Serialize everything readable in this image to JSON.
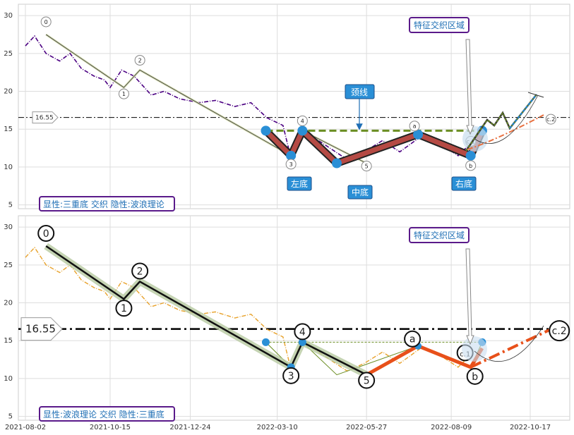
{
  "chart_data": [
    {
      "type": "line",
      "panel": "top",
      "ylim": [
        4.5,
        31.5
      ],
      "yticks": [
        5,
        10,
        15,
        20,
        25,
        30
      ],
      "grid": true,
      "level_line": {
        "value": 16.55,
        "label": "16.55"
      },
      "price_series": {
        "color": "#4b0082",
        "style": "dash-dot",
        "x": [
          "2021-08-02",
          "2021-08-10",
          "2021-08-20",
          "2021-09-01",
          "2021-09-10",
          "2021-09-20",
          "2021-10-01",
          "2021-10-10",
          "2021-10-15",
          "2021-10-25",
          "2021-11-05",
          "2021-11-20",
          "2021-12-01",
          "2021-12-15",
          "2022-01-01",
          "2022-01-15",
          "2022-02-01",
          "2022-02-15",
          "2022-03-01",
          "2022-03-15",
          "2022-03-22",
          "2022-04-01",
          "2022-04-10",
          "2022-04-25",
          "2022-05-10",
          "2022-05-25",
          "2022-06-10",
          "2022-06-25",
          "2022-07-15",
          "2022-07-25",
          "2022-08-05",
          "2022-08-15",
          "2022-08-25"
        ],
        "y": [
          26,
          27.3,
          25,
          24,
          25,
          23,
          22,
          21.5,
          20.5,
          22.8,
          22,
          19.5,
          20,
          19,
          18.5,
          18.8,
          18,
          18.5,
          16.5,
          15.5,
          11.2,
          15.5,
          14,
          12.5,
          11,
          12,
          13.5,
          12,
          14.2,
          13.5,
          12.5,
          11.5,
          13
        ]
      },
      "wave_points": [
        {
          "label": "0",
          "x": "2021-08-20",
          "y": 27.5
        },
        {
          "label": "1",
          "x": "2021-10-27",
          "y": 20.5
        },
        {
          "label": "2",
          "x": "2021-11-10",
          "y": 22.8
        },
        {
          "label": "3",
          "x": "2022-03-22",
          "y": 11.5
        },
        {
          "label": "4",
          "x": "2022-04-01",
          "y": 14.8
        },
        {
          "label": "5",
          "x": "2022-05-27",
          "y": 10.5
        },
        {
          "label": "a",
          "x": "2022-07-11",
          "y": 14.3
        },
        {
          "label": "b",
          "x": "2022-08-26",
          "y": 11.5
        },
        {
          "label": "c.1",
          "x": "2022-08-26",
          "y": 13.4
        },
        {
          "label": "c.2",
          "x": "2022-11-04",
          "y": 16.5
        }
      ],
      "triple_bottom": [
        {
          "x": "2022-02-28",
          "y": 14.8
        },
        {
          "x": "2022-03-22",
          "y": 11.5
        },
        {
          "x": "2022-04-01",
          "y": 14.8
        },
        {
          "x": "2022-05-01",
          "y": 10.5
        },
        {
          "x": "2022-07-11",
          "y": 14.3
        },
        {
          "x": "2022-08-26",
          "y": 11.5
        },
        {
          "x": "2022-09-05",
          "y": 14.8
        }
      ],
      "neckline": {
        "y": 14.8,
        "x_start": "2022-02-28",
        "x_end": "2022-09-05"
      },
      "annotations": [
        "颈线",
        "特征交织区域",
        "左底",
        "中底",
        "右底"
      ],
      "caption": "显性:三重底 交织 隐性:波浪理论"
    },
    {
      "type": "line",
      "panel": "bottom",
      "ylim": [
        4.5,
        31.5
      ],
      "yticks": [
        5,
        10,
        15,
        20,
        25,
        30
      ],
      "xticks": [
        "2021-08-02",
        "2021-10-15",
        "2021-12-24",
        "2022-03-10",
        "2022-05-27",
        "2022-08-09",
        "2022-10-17"
      ],
      "grid": true,
      "level_line": {
        "value": 16.55,
        "label": "16.55"
      },
      "price_series": {
        "color": "#e8a22b",
        "style": "dash-dot",
        "x": [
          "2021-08-02",
          "2021-08-10",
          "2021-08-20",
          "2021-09-01",
          "2021-09-10",
          "2021-09-20",
          "2021-10-01",
          "2021-10-10",
          "2021-10-15",
          "2021-10-25",
          "2021-11-05",
          "2021-11-20",
          "2021-12-01",
          "2021-12-15",
          "2022-01-01",
          "2022-01-15",
          "2022-02-01",
          "2022-02-15",
          "2022-03-01",
          "2022-03-15",
          "2022-03-22",
          "2022-04-01",
          "2022-04-10",
          "2022-04-25",
          "2022-05-10",
          "2022-05-25",
          "2022-06-10",
          "2022-06-25",
          "2022-07-15",
          "2022-07-25",
          "2022-08-05",
          "2022-08-15",
          "2022-08-25"
        ],
        "y": [
          26,
          27.3,
          25,
          24,
          25,
          23,
          22,
          21.5,
          20.5,
          22.8,
          22,
          19.5,
          20,
          19,
          18.5,
          18.8,
          18,
          18.5,
          16.5,
          15.5,
          11.2,
          15.5,
          14,
          12.5,
          11,
          12,
          13.5,
          12,
          14.2,
          13.5,
          12.5,
          11.5,
          13
        ]
      },
      "wave_points": [
        {
          "label": "0",
          "x": "2021-08-20",
          "y": 27.5
        },
        {
          "label": "1",
          "x": "2021-10-27",
          "y": 20.5
        },
        {
          "label": "2",
          "x": "2021-11-10",
          "y": 22.8
        },
        {
          "label": "3",
          "x": "2022-03-22",
          "y": 11.5
        },
        {
          "label": "4",
          "x": "2022-04-01",
          "y": 14.8
        },
        {
          "label": "5",
          "x": "2022-05-27",
          "y": 10.5
        },
        {
          "label": "a",
          "x": "2022-07-11",
          "y": 14.3
        },
        {
          "label": "b",
          "x": "2022-08-26",
          "y": 11.5
        },
        {
          "label": "c.1",
          "x": "2022-08-26",
          "y": 13.4
        },
        {
          "label": "c.2",
          "x": "2022-11-04",
          "y": 16.5
        }
      ],
      "annotations": [
        "特征交织区域"
      ],
      "caption": "显性:波浪理论 交织 隐性:三重底"
    }
  ]
}
